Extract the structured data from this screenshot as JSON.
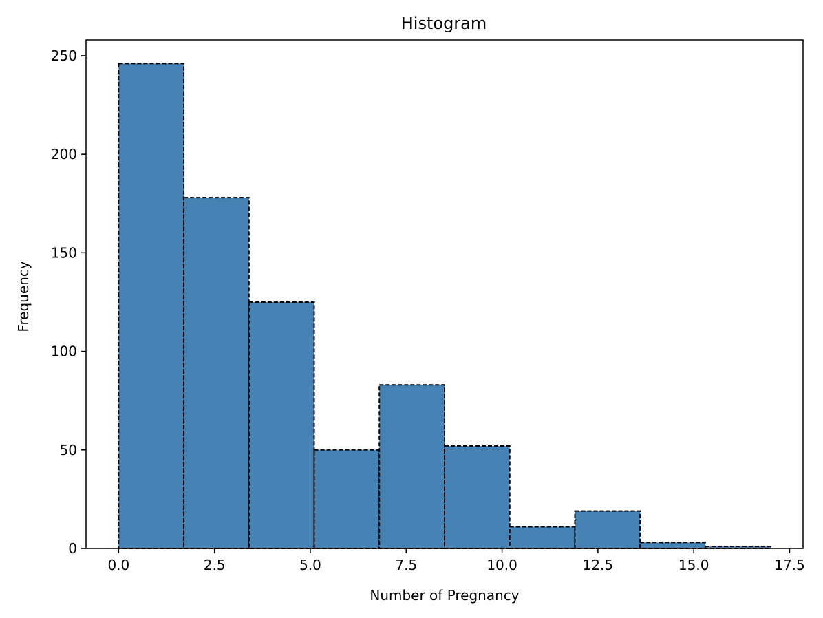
{
  "chart_data": {
    "type": "histogram",
    "title": "Histogram",
    "xlabel": "Number of Pregnancy",
    "ylabel": "Frequency",
    "bin_edges": [
      0,
      1.7,
      3.4,
      5.1,
      6.8,
      8.5,
      10.2,
      11.9,
      13.6,
      15.3,
      17.0
    ],
    "counts": [
      246,
      178,
      125,
      50,
      83,
      52,
      11,
      19,
      3,
      1
    ],
    "xlim": [
      -0.85,
      17.85
    ],
    "ylim": [
      0,
      258
    ],
    "xticks": [
      0,
      2.5,
      5,
      7.5,
      10,
      12.5,
      15,
      17.5
    ],
    "xtick_labels": [
      "0.0",
      "2.5",
      "5.0",
      "7.5",
      "10.0",
      "12.5",
      "15.0",
      "17.5"
    ],
    "yticks": [
      0,
      50,
      100,
      150,
      200,
      250
    ],
    "ytick_labels": [
      "0",
      "50",
      "100",
      "150",
      "200",
      "250"
    ],
    "bar_color": "#4682b4",
    "edge_color": "#000000",
    "edge_style": "dashed",
    "grid": false
  }
}
